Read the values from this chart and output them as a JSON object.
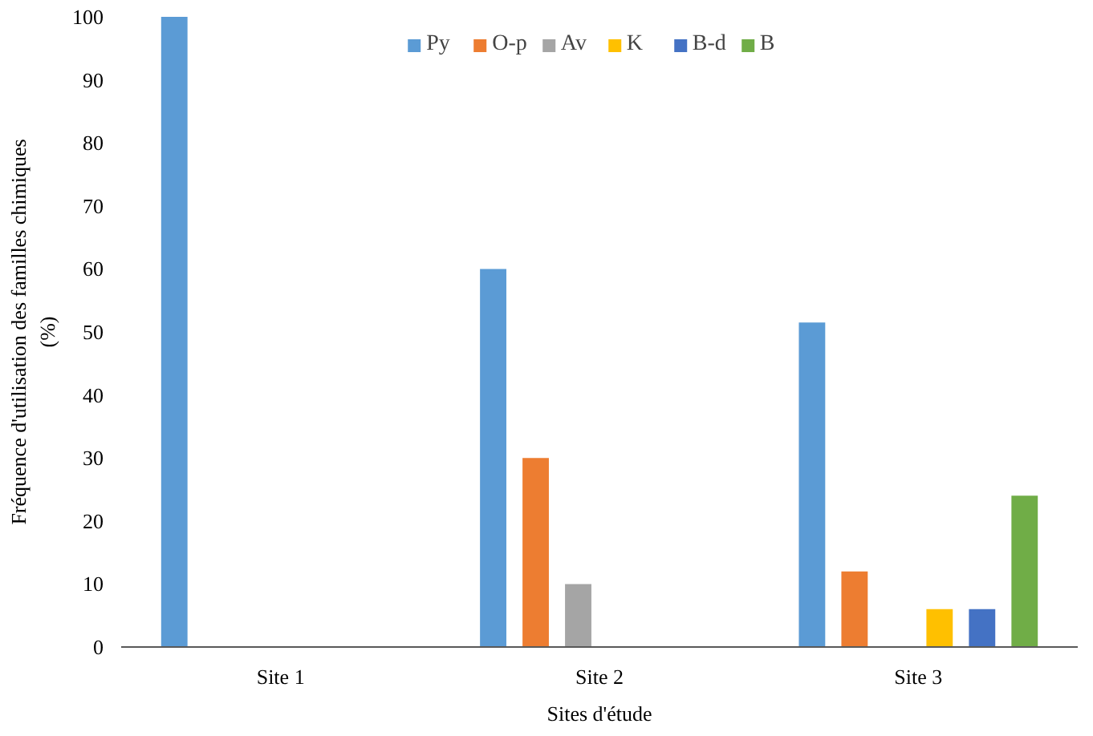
{
  "chart_data": {
    "type": "bar",
    "xlabel": "Sites d'étude",
    "ylabel": "Fréquence d'utilisation des familles chimiques\n(%)",
    "categories": [
      "Site 1",
      "Site 2",
      "Site 3"
    ],
    "series": [
      {
        "name": "Py",
        "color": "#5b9bd5",
        "values": [
          100,
          60,
          51.5
        ]
      },
      {
        "name": "O-p",
        "color": "#ed7d31",
        "values": [
          0,
          30,
          12
        ]
      },
      {
        "name": "Av",
        "color": "#a5a5a5",
        "values": [
          0,
          10,
          0
        ]
      },
      {
        "name": "K",
        "color": "#ffc000",
        "values": [
          0,
          0,
          6
        ]
      },
      {
        "name": "B-d",
        "color": "#4472c4",
        "values": [
          0,
          0,
          6
        ]
      },
      {
        "name": "B",
        "color": "#70ad47",
        "values": [
          0,
          0,
          24
        ]
      }
    ],
    "ylim": [
      0,
      100
    ],
    "yticks": [
      0,
      10,
      20,
      30,
      40,
      50,
      60,
      70,
      80,
      90,
      100
    ],
    "grid": false,
    "legend": "top"
  }
}
